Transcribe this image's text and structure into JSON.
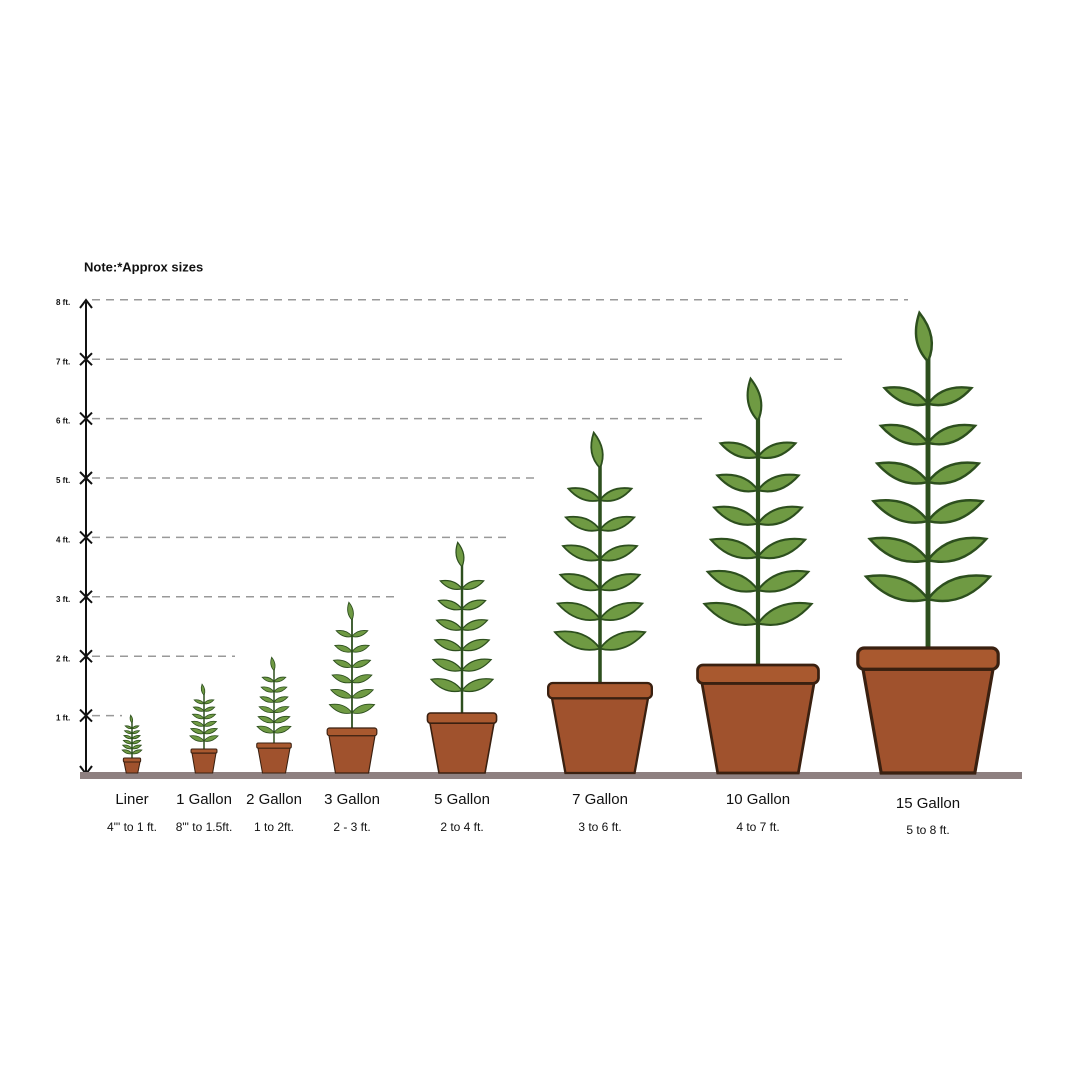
{
  "note": "Note:*Approx sizes",
  "scale": [
    "1 ft.",
    "2 ft.",
    "3 ft.",
    "4 ft.",
    "5 ft.",
    "6 ft.",
    "7 ft.",
    "8 ft."
  ],
  "items": [
    {
      "name": "Liner",
      "range": "4\"' to 1 ft."
    },
    {
      "name": "1 Gallon",
      "range": "8\"' to 1.5ft."
    },
    {
      "name": "2 Gallon",
      "range": "1 to 2ft."
    },
    {
      "name": "3 Gallon",
      "range": "2 - 3 ft."
    },
    {
      "name": "5 Gallon",
      "range": "2 to 4 ft."
    },
    {
      "name": "7 Gallon",
      "range": "3 to 6 ft."
    },
    {
      "name": "10 Gallon",
      "range": "4 to 7 ft."
    },
    {
      "name": "15 Gallon",
      "range": "5 to 8 ft."
    }
  ]
}
